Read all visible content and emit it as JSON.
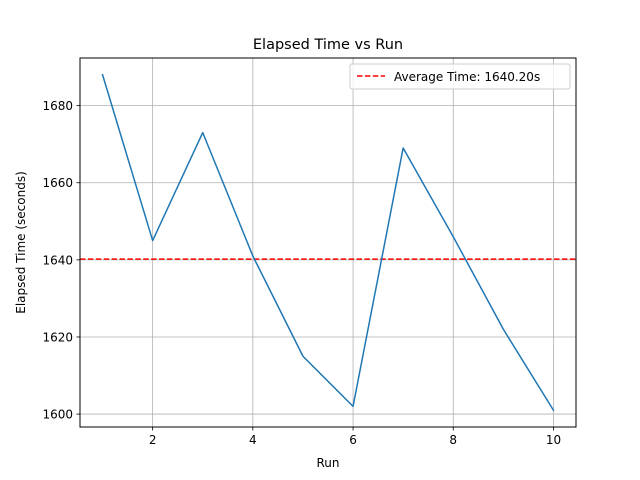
{
  "chart_data": {
    "type": "line",
    "title": "Elapsed Time vs Run",
    "xlabel": "Run",
    "ylabel": "Elapsed Time (seconds)",
    "xlim": [
      0.55,
      10.45
    ],
    "ylim": [
      1596.65,
      1692.35
    ],
    "xticks": [
      2,
      4,
      6,
      8,
      10
    ],
    "yticks": [
      1600,
      1620,
      1640,
      1660,
      1680
    ],
    "grid": true,
    "legend_position": "upper right",
    "series": [
      {
        "x": [
          1,
          2,
          3,
          4,
          5,
          6,
          7,
          8,
          9,
          10
        ],
        "values": [
          1688,
          1645,
          1673,
          1641,
          1615,
          1602,
          1669,
          1646,
          1622,
          1601
        ],
        "color": "#1f77b4"
      }
    ],
    "reference_lines": [
      {
        "name": "Average Time: 1640.20s",
        "y": 1640.2,
        "color": "#ff0000",
        "style": "dashed"
      }
    ]
  }
}
